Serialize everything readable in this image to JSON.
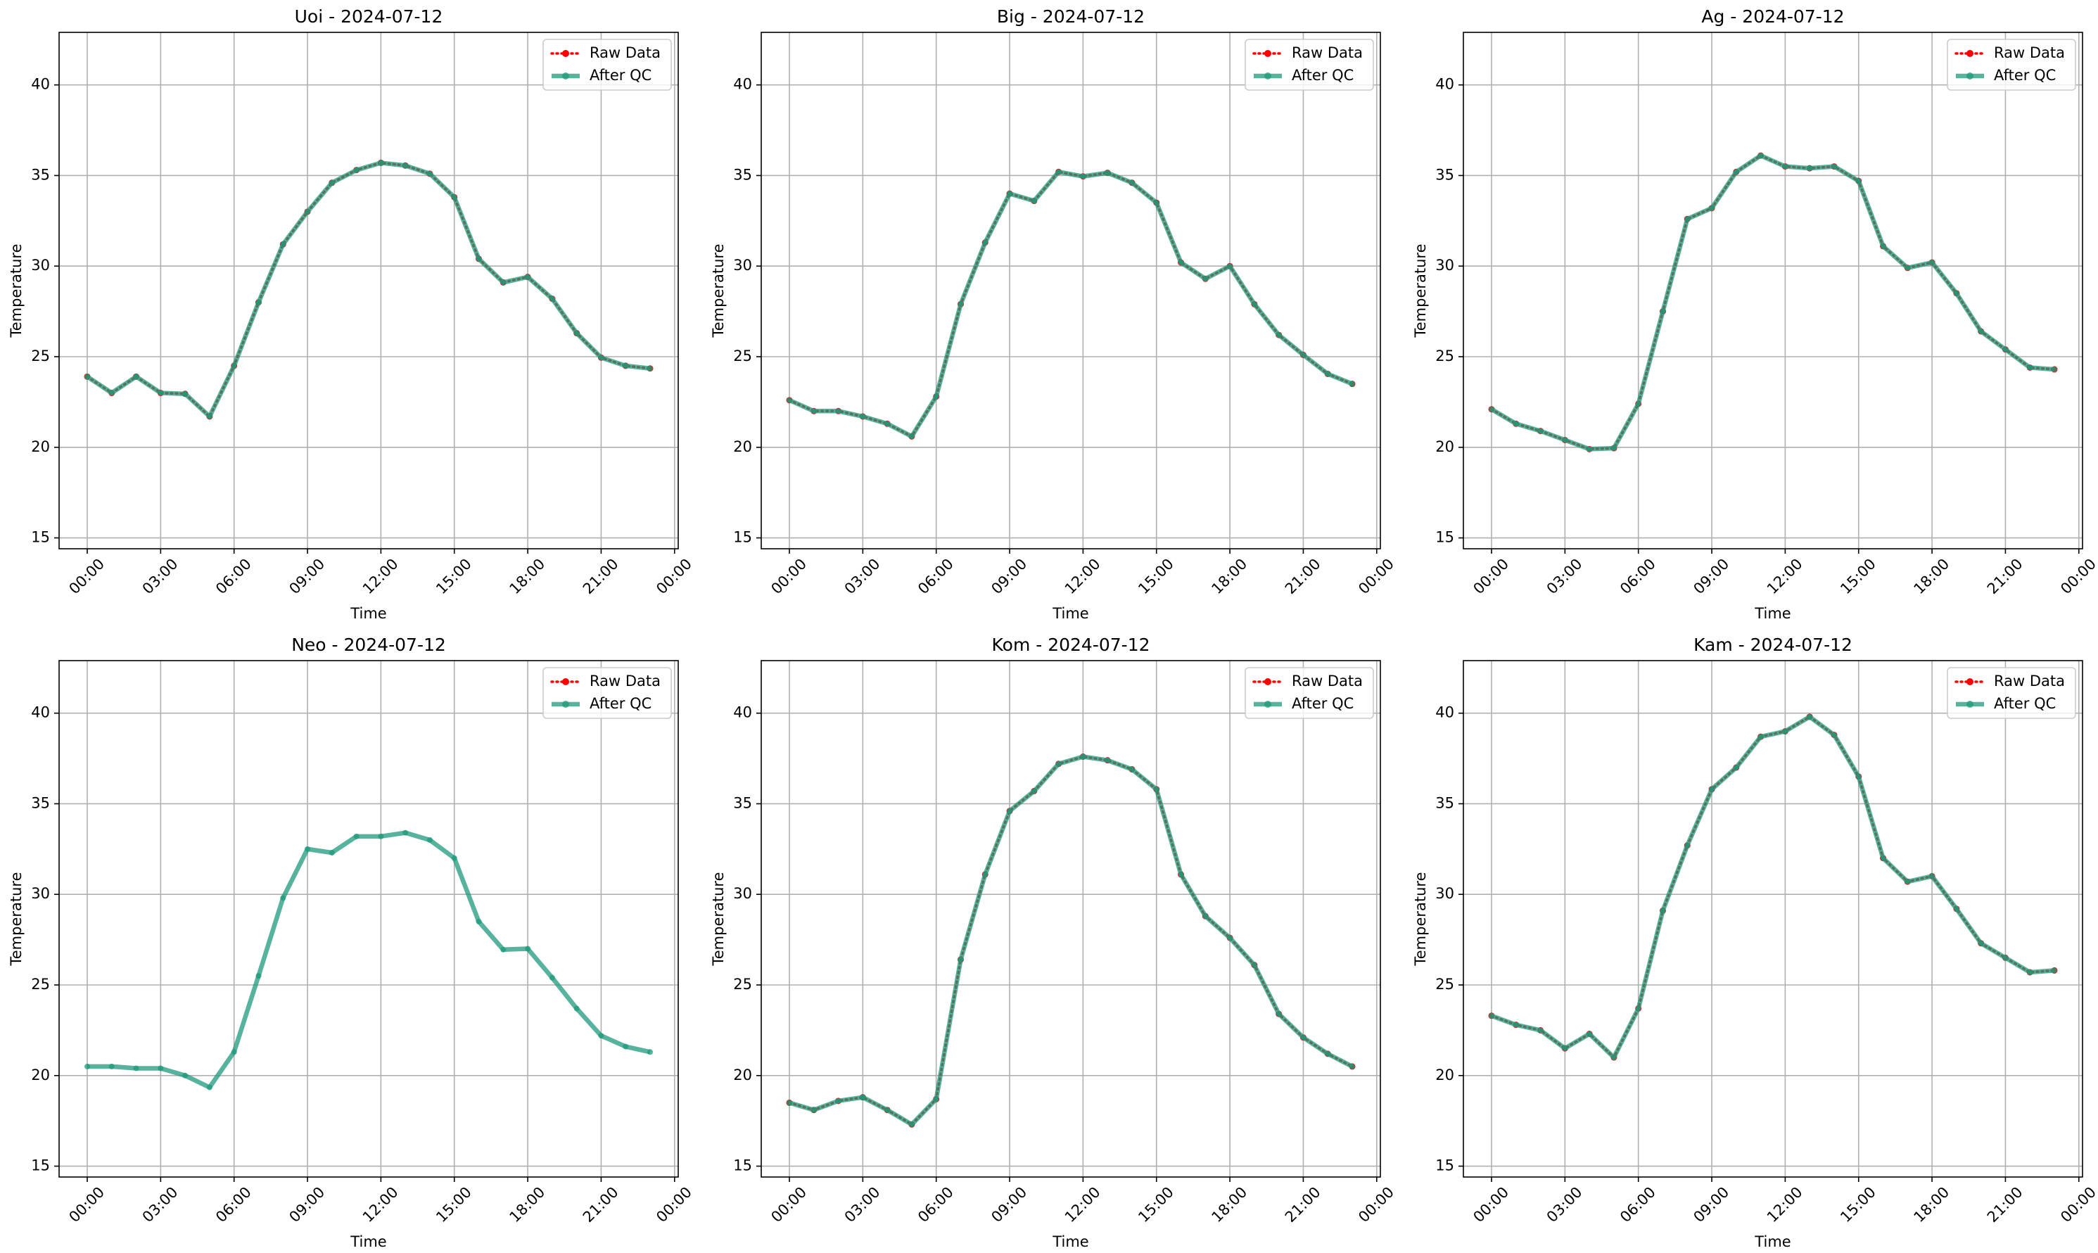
{
  "chart_data": [
    {
      "type": "line",
      "title": "Uoi - 2024-07-12",
      "xlabel": "Time",
      "ylabel": "Temperature",
      "x": [
        0,
        1,
        2,
        3,
        4,
        5,
        6,
        7,
        8,
        9,
        10,
        11,
        12,
        13,
        14,
        15,
        16,
        17,
        18,
        19,
        20,
        21,
        22,
        23
      ],
      "xlim": [
        -1.15,
        24.15
      ],
      "xticks": [
        {
          "value": 0,
          "label": "00:00"
        },
        {
          "value": 3,
          "label": "03:00"
        },
        {
          "value": 6,
          "label": "06:00"
        },
        {
          "value": 9,
          "label": "09:00"
        },
        {
          "value": 12,
          "label": "12:00"
        },
        {
          "value": 15,
          "label": "15:00"
        },
        {
          "value": 18,
          "label": "18:00"
        },
        {
          "value": 21,
          "label": "21:00"
        },
        {
          "value": 24,
          "label": "00:00"
        }
      ],
      "ylim": [
        14.4,
        42.9
      ],
      "yticks": [
        15,
        20,
        25,
        30,
        35,
        40
      ],
      "grid": true,
      "legend": "upper right",
      "series": [
        {
          "name": "Raw Data",
          "color": "#ff0000",
          "values": [
            23.9,
            23.0,
            23.9,
            23.0,
            22.95,
            21.7,
            24.5,
            28.0,
            31.2,
            33.0,
            34.6,
            35.3,
            35.7,
            35.55,
            35.1,
            33.8,
            30.4,
            29.1,
            29.4,
            28.2,
            26.3,
            24.95,
            24.5,
            24.35
          ]
        },
        {
          "name": "After QC",
          "color": "#1f9a7c",
          "values": [
            23.9,
            23.0,
            23.9,
            23.0,
            22.95,
            21.7,
            24.5,
            28.0,
            31.2,
            33.0,
            34.6,
            35.3,
            35.7,
            35.55,
            35.1,
            33.8,
            30.4,
            29.1,
            29.4,
            28.2,
            26.3,
            24.95,
            24.5,
            24.35
          ]
        }
      ]
    },
    {
      "type": "line",
      "title": "Big - 2024-07-12",
      "xlabel": "Time",
      "ylabel": "Temperature",
      "x": [
        0,
        1,
        2,
        3,
        4,
        5,
        6,
        7,
        8,
        9,
        10,
        11,
        12,
        13,
        14,
        15,
        16,
        17,
        18,
        19,
        20,
        21,
        22,
        23
      ],
      "xlim": [
        -1.15,
        24.15
      ],
      "xticks": [
        {
          "value": 0,
          "label": "00:00"
        },
        {
          "value": 3,
          "label": "03:00"
        },
        {
          "value": 6,
          "label": "06:00"
        },
        {
          "value": 9,
          "label": "09:00"
        },
        {
          "value": 12,
          "label": "12:00"
        },
        {
          "value": 15,
          "label": "15:00"
        },
        {
          "value": 18,
          "label": "18:00"
        },
        {
          "value": 21,
          "label": "21:00"
        },
        {
          "value": 24,
          "label": "00:00"
        }
      ],
      "ylim": [
        14.4,
        42.9
      ],
      "yticks": [
        15,
        20,
        25,
        30,
        35,
        40
      ],
      "grid": true,
      "legend": "upper right",
      "series": [
        {
          "name": "Raw Data",
          "color": "#ff0000",
          "values": [
            22.6,
            22.0,
            22.0,
            21.7,
            21.3,
            20.6,
            22.8,
            27.9,
            31.3,
            34.0,
            33.6,
            35.2,
            34.95,
            35.15,
            34.6,
            33.5,
            30.2,
            29.3,
            30.0,
            27.9,
            26.2,
            25.1,
            24.05,
            23.5
          ]
        },
        {
          "name": "After QC",
          "color": "#1f9a7c",
          "values": [
            22.6,
            22.0,
            22.0,
            21.7,
            21.3,
            20.6,
            22.8,
            27.9,
            31.3,
            34.0,
            33.6,
            35.2,
            34.95,
            35.15,
            34.6,
            33.5,
            30.2,
            29.3,
            30.0,
            27.9,
            26.2,
            25.1,
            24.05,
            23.5
          ]
        }
      ]
    },
    {
      "type": "line",
      "title": "Ag - 2024-07-12",
      "xlabel": "Time",
      "ylabel": "Temperature",
      "x": [
        0,
        1,
        2,
        3,
        4,
        5,
        6,
        7,
        8,
        9,
        10,
        11,
        12,
        13,
        14,
        15,
        16,
        17,
        18,
        19,
        20,
        21,
        22,
        23
      ],
      "xlim": [
        -1.15,
        24.15
      ],
      "xticks": [
        {
          "value": 0,
          "label": "00:00"
        },
        {
          "value": 3,
          "label": "03:00"
        },
        {
          "value": 6,
          "label": "06:00"
        },
        {
          "value": 9,
          "label": "09:00"
        },
        {
          "value": 12,
          "label": "12:00"
        },
        {
          "value": 15,
          "label": "15:00"
        },
        {
          "value": 18,
          "label": "18:00"
        },
        {
          "value": 21,
          "label": "21:00"
        },
        {
          "value": 24,
          "label": "00:00"
        }
      ],
      "ylim": [
        14.4,
        42.9
      ],
      "yticks": [
        15,
        20,
        25,
        30,
        35,
        40
      ],
      "grid": true,
      "legend": "upper right",
      "series": [
        {
          "name": "Raw Data",
          "color": "#ff0000",
          "values": [
            22.1,
            21.3,
            20.9,
            20.4,
            19.9,
            19.95,
            22.4,
            27.5,
            32.6,
            33.2,
            35.2,
            36.1,
            35.5,
            35.4,
            35.5,
            34.7,
            31.1,
            29.9,
            30.2,
            28.5,
            26.4,
            25.4,
            24.4,
            24.3
          ]
        },
        {
          "name": "After QC",
          "color": "#1f9a7c",
          "values": [
            22.1,
            21.3,
            20.9,
            20.4,
            19.9,
            19.95,
            22.4,
            27.5,
            32.6,
            33.2,
            35.2,
            36.1,
            35.5,
            35.4,
            35.5,
            34.7,
            31.1,
            29.9,
            30.2,
            28.5,
            26.4,
            25.4,
            24.4,
            24.3
          ]
        }
      ]
    },
    {
      "type": "line",
      "title": "Neo - 2024-07-12",
      "xlabel": "Time",
      "ylabel": "Temperature",
      "x": [
        0,
        1,
        2,
        3,
        4,
        5,
        6,
        7,
        8,
        9,
        10,
        11,
        12,
        13,
        14,
        15,
        16,
        17,
        18,
        19,
        20,
        21,
        22,
        23
      ],
      "xlim": [
        -1.15,
        24.15
      ],
      "xticks": [
        {
          "value": 0,
          "label": "00:00"
        },
        {
          "value": 3,
          "label": "03:00"
        },
        {
          "value": 6,
          "label": "06:00"
        },
        {
          "value": 9,
          "label": "09:00"
        },
        {
          "value": 12,
          "label": "12:00"
        },
        {
          "value": 15,
          "label": "15:00"
        },
        {
          "value": 18,
          "label": "18:00"
        },
        {
          "value": 21,
          "label": "21:00"
        },
        {
          "value": 24,
          "label": "00:00"
        }
      ],
      "ylim": [
        14.4,
        42.9
      ],
      "yticks": [
        15,
        20,
        25,
        30,
        35,
        40
      ],
      "grid": true,
      "legend": "upper right",
      "series": [
        {
          "name": "Raw Data",
          "color": "#ff0000",
          "values": [
            null,
            null,
            null,
            null,
            null,
            null,
            null,
            null,
            null,
            null,
            null,
            null,
            null,
            null,
            null,
            null,
            null,
            null,
            null,
            null,
            null,
            null,
            null,
            null
          ]
        },
        {
          "name": "After QC",
          "color": "#1f9a7c",
          "values": [
            20.5,
            20.5,
            20.4,
            20.4,
            20.0,
            19.35,
            21.3,
            25.5,
            29.8,
            32.5,
            32.3,
            33.2,
            33.2,
            33.4,
            33.0,
            32.0,
            28.5,
            26.95,
            27.0,
            25.4,
            23.7,
            22.2,
            21.6,
            21.3
          ]
        }
      ]
    },
    {
      "type": "line",
      "title": "Kom - 2024-07-12",
      "xlabel": "Time",
      "ylabel": "Temperature",
      "x": [
        0,
        1,
        2,
        3,
        4,
        5,
        6,
        7,
        8,
        9,
        10,
        11,
        12,
        13,
        14,
        15,
        16,
        17,
        18,
        19,
        20,
        21,
        22,
        23
      ],
      "xlim": [
        -1.15,
        24.15
      ],
      "xticks": [
        {
          "value": 0,
          "label": "00:00"
        },
        {
          "value": 3,
          "label": "03:00"
        },
        {
          "value": 6,
          "label": "06:00"
        },
        {
          "value": 9,
          "label": "09:00"
        },
        {
          "value": 12,
          "label": "12:00"
        },
        {
          "value": 15,
          "label": "15:00"
        },
        {
          "value": 18,
          "label": "18:00"
        },
        {
          "value": 21,
          "label": "21:00"
        },
        {
          "value": 24,
          "label": "00:00"
        }
      ],
      "ylim": [
        14.4,
        42.9
      ],
      "yticks": [
        15,
        20,
        25,
        30,
        35,
        40
      ],
      "grid": true,
      "legend": "upper right",
      "series": [
        {
          "name": "Raw Data",
          "color": "#ff0000",
          "values": [
            18.5,
            18.1,
            18.6,
            18.8,
            18.1,
            17.3,
            18.7,
            26.4,
            31.1,
            34.6,
            35.7,
            37.2,
            37.6,
            37.4,
            36.9,
            35.8,
            31.1,
            28.8,
            27.6,
            26.1,
            23.4,
            22.1,
            21.2,
            20.5
          ]
        },
        {
          "name": "After QC",
          "color": "#1f9a7c",
          "values": [
            18.5,
            18.1,
            18.6,
            18.8,
            18.1,
            17.3,
            18.7,
            26.4,
            31.1,
            34.6,
            35.7,
            37.2,
            37.6,
            37.4,
            36.9,
            35.8,
            31.1,
            28.8,
            27.6,
            26.1,
            23.4,
            22.1,
            21.2,
            20.5
          ]
        }
      ]
    },
    {
      "type": "line",
      "title": "Kam - 2024-07-12",
      "xlabel": "Time",
      "ylabel": "Temperature",
      "x": [
        0,
        1,
        2,
        3,
        4,
        5,
        6,
        7,
        8,
        9,
        10,
        11,
        12,
        13,
        14,
        15,
        16,
        17,
        18,
        19,
        20,
        21,
        22,
        23
      ],
      "xlim": [
        -1.15,
        24.15
      ],
      "xticks": [
        {
          "value": 0,
          "label": "00:00"
        },
        {
          "value": 3,
          "label": "03:00"
        },
        {
          "value": 6,
          "label": "06:00"
        },
        {
          "value": 9,
          "label": "09:00"
        },
        {
          "value": 12,
          "label": "12:00"
        },
        {
          "value": 15,
          "label": "15:00"
        },
        {
          "value": 18,
          "label": "18:00"
        },
        {
          "value": 21,
          "label": "21:00"
        },
        {
          "value": 24,
          "label": "00:00"
        }
      ],
      "ylim": [
        14.4,
        42.9
      ],
      "yticks": [
        15,
        20,
        25,
        30,
        35,
        40
      ],
      "grid": true,
      "legend": "upper right",
      "series": [
        {
          "name": "Raw Data",
          "color": "#ff0000",
          "values": [
            23.3,
            22.8,
            22.5,
            21.5,
            22.3,
            21.0,
            23.7,
            29.1,
            32.7,
            35.8,
            37.0,
            38.7,
            39.0,
            39.8,
            38.8,
            36.5,
            32.0,
            30.7,
            31.0,
            29.2,
            27.3,
            26.5,
            25.7,
            25.8
          ]
        },
        {
          "name": "After QC",
          "color": "#1f9a7c",
          "values": [
            23.3,
            22.8,
            22.5,
            21.5,
            22.3,
            21.0,
            23.7,
            29.1,
            32.7,
            35.8,
            37.0,
            38.7,
            39.0,
            39.8,
            38.8,
            36.5,
            32.0,
            30.7,
            31.0,
            29.2,
            27.3,
            26.5,
            25.7,
            25.8
          ]
        }
      ]
    }
  ]
}
